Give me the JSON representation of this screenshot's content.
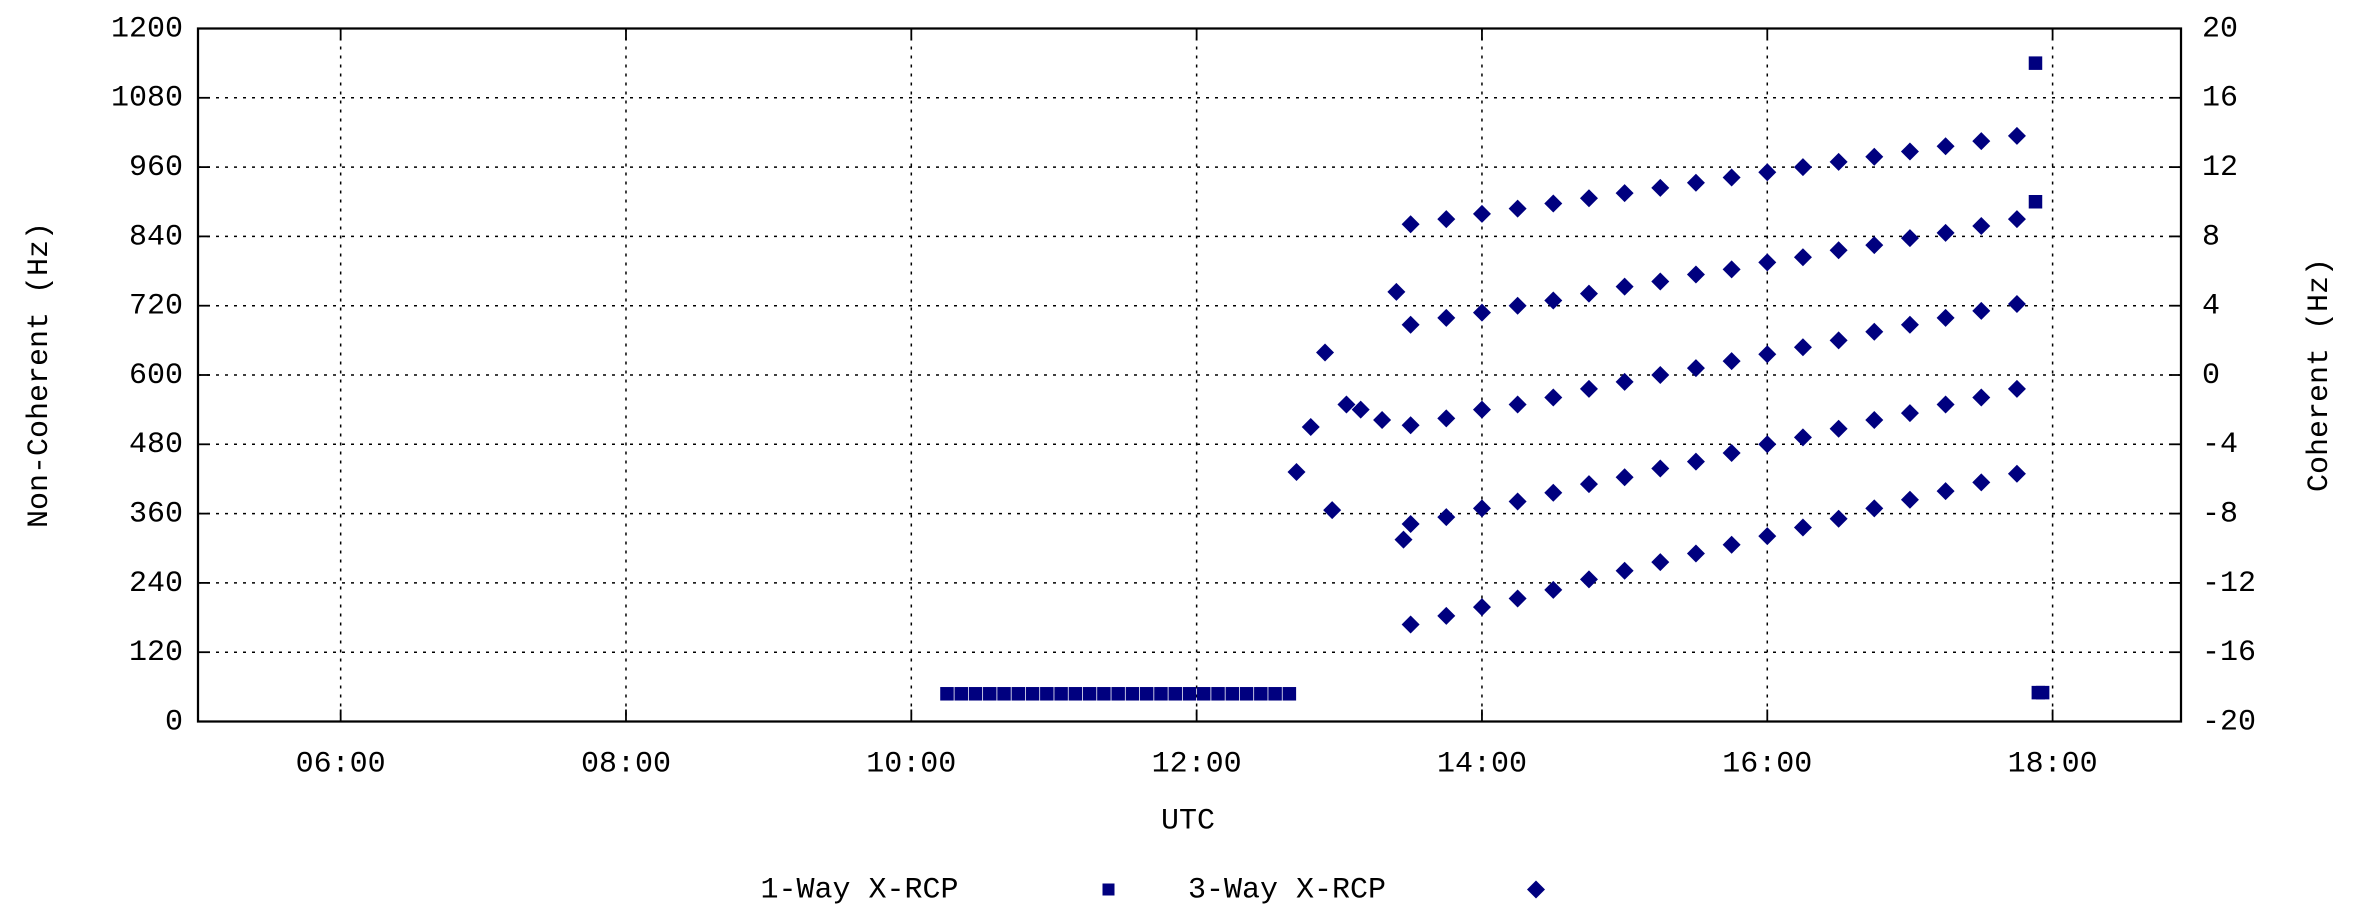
{
  "chart_data": {
    "type": "scatter",
    "xlabel": "UTC",
    "ylabel": "Non-Coherent (Hz)",
    "y2label": "Coherent (Hz)",
    "xlim": [
      5,
      18.9
    ],
    "xticks": [
      {
        "value": 6,
        "label": "06:00"
      },
      {
        "value": 8,
        "label": "08:00"
      },
      {
        "value": 10,
        "label": "10:00"
      },
      {
        "value": 12,
        "label": "12:00"
      },
      {
        "value": 14,
        "label": "14:00"
      },
      {
        "value": 16,
        "label": "16:00"
      },
      {
        "value": 18,
        "label": "18:00"
      }
    ],
    "ylim": [
      0,
      1200
    ],
    "yticks": [
      0,
      120,
      240,
      360,
      480,
      600,
      720,
      840,
      960,
      1080,
      1200
    ],
    "y2lim": [
      -20,
      20
    ],
    "y2ticks": [
      -20,
      -16,
      -12,
      -8,
      -4,
      0,
      4,
      8,
      12,
      16,
      20
    ],
    "grid": true,
    "legend": "bottom",
    "series": [
      {
        "name": "1-Way X-RCP",
        "color": "#00007f",
        "marker": "square",
        "x": [
          10.25,
          10.35,
          10.45,
          10.55,
          10.65,
          10.75,
          10.85,
          10.95,
          11.05,
          11.15,
          11.25,
          11.35,
          11.45,
          11.55,
          11.65,
          11.75,
          11.85,
          11.95,
          12.05,
          12.15,
          12.25,
          12.35,
          12.45,
          12.55,
          12.65,
          17.88,
          17.88,
          17.9,
          17.93
        ],
        "values": [
          48,
          48,
          48,
          48,
          48,
          48,
          48,
          48,
          48,
          48,
          48,
          48,
          48,
          48,
          48,
          48,
          48,
          48,
          48,
          48,
          48,
          48,
          48,
          48,
          48,
          1140,
          900,
          50,
          50
        ]
      },
      {
        "name": "3-Way X-RCP",
        "color": "#00007f",
        "marker": "diamond",
        "axis": "y2",
        "x": [
          12.7,
          12.8,
          12.9,
          12.95,
          13.05,
          13.15,
          13.3,
          13.4,
          13.45,
          13.5,
          13.5,
          13.5,
          13.5,
          13.5,
          13.75,
          13.75,
          13.75,
          13.75,
          13.75,
          14.0,
          14.0,
          14.0,
          14.0,
          14.0,
          14.25,
          14.25,
          14.25,
          14.25,
          14.25,
          14.5,
          14.5,
          14.5,
          14.5,
          14.5,
          14.75,
          14.75,
          14.75,
          14.75,
          14.75,
          15.0,
          15.0,
          15.0,
          15.0,
          15.0,
          15.25,
          15.25,
          15.25,
          15.25,
          15.25,
          15.5,
          15.5,
          15.5,
          15.5,
          15.5,
          15.75,
          15.75,
          15.75,
          15.75,
          15.75,
          16.0,
          16.0,
          16.0,
          16.0,
          16.0,
          16.25,
          16.25,
          16.25,
          16.25,
          16.25,
          16.5,
          16.5,
          16.5,
          16.5,
          16.5,
          16.75,
          16.75,
          16.75,
          16.75,
          16.75,
          17.0,
          17.0,
          17.0,
          17.0,
          17.0,
          17.25,
          17.25,
          17.25,
          17.25,
          17.25,
          17.5,
          17.5,
          17.5,
          17.5,
          17.5,
          17.75,
          17.75,
          17.75,
          17.75,
          17.75
        ],
        "values": [
          -5.6,
          -3.0,
          1.3,
          -7.8,
          -1.7,
          -2.0,
          -2.6,
          4.8,
          -9.5,
          -14.4,
          -8.6,
          -2.9,
          2.9,
          8.7,
          -13.9,
          -8.2,
          -2.5,
          3.3,
          9.0,
          -13.4,
          -7.7,
          -2.0,
          3.6,
          9.3,
          -12.9,
          -7.3,
          -1.7,
          4.0,
          9.6,
          -12.4,
          -6.8,
          -1.3,
          4.3,
          9.9,
          -11.8,
          -6.3,
          -0.8,
          4.7,
          10.2,
          -11.3,
          -5.9,
          -0.4,
          5.1,
          10.5,
          -10.8,
          -5.4,
          0,
          5.4,
          10.8,
          -10.3,
          -5.0,
          0.4,
          5.8,
          11.1,
          -9.8,
          -4.5,
          0.8,
          6.1,
          11.4,
          -9.3,
          -4.0,
          1.2,
          6.5,
          11.7,
          -8.8,
          -3.6,
          1.6,
          6.8,
          12.0,
          -8.3,
          -3.1,
          2.0,
          7.2,
          12.3,
          -7.7,
          -2.6,
          2.5,
          7.5,
          12.6,
          -7.2,
          -2.2,
          2.9,
          7.9,
          12.9,
          -6.7,
          -1.7,
          3.3,
          8.2,
          13.2,
          -6.2,
          -1.3,
          3.7,
          8.6,
          13.5,
          -5.7,
          -0.8,
          4.1,
          9.0,
          13.8
        ]
      }
    ]
  }
}
